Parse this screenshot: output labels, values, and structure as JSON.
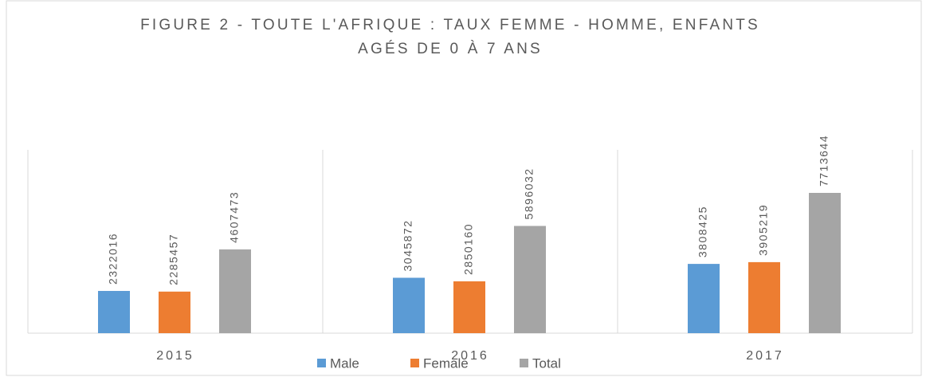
{
  "chart_data": {
    "type": "bar",
    "title": [
      "FIGURE 2 - TOUTE L'AFRIQUE : TAUX FEMME - HOMME, ENFANTS",
      "AGÉS DE 0 À 7 ANS"
    ],
    "categories": [
      "2015",
      "2016",
      "2017"
    ],
    "series": [
      {
        "name": "Male",
        "color": "#5b9bd5",
        "values": [
          2322016,
          3045872,
          3808425
        ]
      },
      {
        "name": "Female",
        "color": "#ed7d31",
        "values": [
          2285457,
          2850160,
          3905219
        ]
      },
      {
        "name": "Total",
        "color": "#a5a5a5",
        "values": [
          4607473,
          5896032,
          7713644
        ]
      }
    ],
    "legend": "bottom"
  }
}
